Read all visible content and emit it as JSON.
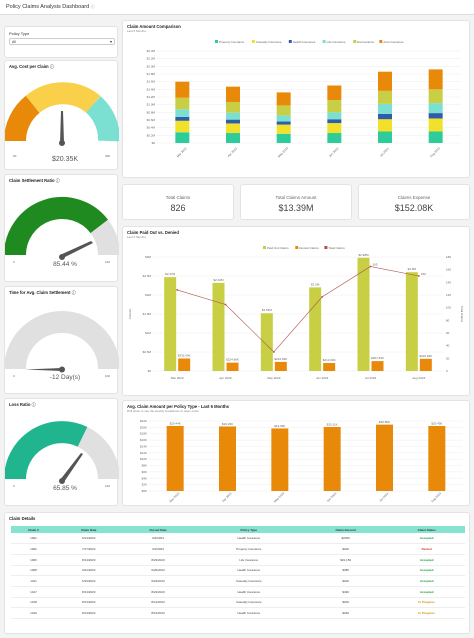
{
  "page_title": "Policy Claims Analysis Dashboard",
  "filter": {
    "label": "Policy Type",
    "value": "All"
  },
  "gauges": {
    "avg_cost": {
      "title": "Avg. Cost per Claim",
      "value": "$20.35K",
      "min": "0K",
      "max": "40K",
      "fraction": 0.51
    },
    "settlement_ratio": {
      "title": "Claim Settlement Ratio",
      "value": "85.44 %",
      "min": "0",
      "max": "100",
      "fraction": 0.85
    },
    "time_settlement": {
      "title": "Time for Avg. Claim Settlement",
      "value": "-12 Day(s)",
      "min": "0",
      "max": "100",
      "fraction": 0
    },
    "loss_ratio": {
      "title": "Loss Ratio",
      "value": "65.85 %",
      "min": "0",
      "max": "100",
      "fraction": 0.66
    }
  },
  "kpis": [
    {
      "label": "Total Claims",
      "value": "826"
    },
    {
      "label": "Total Claims Amount",
      "value": "$13.39M"
    },
    {
      "label": "Claims Expense",
      "value": "$152.08K"
    }
  ],
  "chart_data": [
    {
      "type": "bar",
      "stacked": true,
      "title": "Claim Amount Comparison",
      "subtitle": "Last 6 Months",
      "categories": [
        "Mar 2023",
        "Apr 2023",
        "May 2023",
        "Jun 2023",
        "Jul 2023",
        "Aug 2023"
      ],
      "y_ticks": [
        "$0",
        "$0.2M",
        "$0.4M",
        "$0.6M",
        "$0.8M",
        "$1.0M",
        "$1.2M",
        "$1.4M",
        "$1.6M",
        "$1.8M",
        "$2.0M",
        "$2.2M",
        "$2.4M"
      ],
      "ylim": [
        0,
        2.4
      ],
      "legend_position": "top",
      "series": [
        {
          "name": "Property Insurance",
          "color": "#2ecc9a",
          "values": [
            0.28,
            0.26,
            0.24,
            0.26,
            0.3,
            0.3
          ]
        },
        {
          "name": "Casualty Insurance",
          "color": "#f2e12b",
          "values": [
            0.3,
            0.25,
            0.24,
            0.26,
            0.32,
            0.34
          ]
        },
        {
          "name": "Health Insurance",
          "color": "#2e5eaa",
          "values": [
            0.1,
            0.1,
            0.08,
            0.1,
            0.14,
            0.14
          ]
        },
        {
          "name": "Life Insurance",
          "color": "#7be0d2",
          "values": [
            0.2,
            0.18,
            0.16,
            0.18,
            0.26,
            0.26
          ]
        },
        {
          "name": "Reinsurance",
          "color": "#c9cf45",
          "values": [
            0.3,
            0.28,
            0.26,
            0.32,
            0.34,
            0.36
          ]
        },
        {
          "name": "Auto Insurance",
          "color": "#e8890a",
          "values": [
            0.42,
            0.4,
            0.34,
            0.38,
            0.5,
            0.52
          ]
        }
      ]
    },
    {
      "type": "bar",
      "title": "Claim Paid Out vs. Denied",
      "subtitle": "Last 6 Months",
      "categories": [
        "Mar 2023",
        "Apr 2023",
        "May 2023",
        "Jun 2023",
        "Jul 2023",
        "Aug 2023"
      ],
      "ylabel": "Amount",
      "y2label": "Total Claims",
      "y_ticks": [
        "$0",
        "$0.5M",
        "$1M",
        "$1.5M",
        "$2M",
        "$2.5M",
        "$3M"
      ],
      "y2_ticks": [
        "0",
        "20",
        "40",
        "60",
        "80",
        "100",
        "120",
        "140",
        "160",
        "180"
      ],
      "ylim": [
        0,
        3
      ],
      "y2lim": [
        0,
        180
      ],
      "legend_position": "top",
      "series": [
        {
          "name": "Paid Out Claims",
          "color": "#c9cf45",
          "values": [
            2.47,
            2.32,
            1.52,
            2.2,
            2.98,
            2.6
          ],
          "labels": [
            "$2.47M",
            "$2.32M",
            "$1.52M",
            "$2.2M",
            "$2.98M",
            "$2.6M"
          ]
        },
        {
          "name": "Denied Claims",
          "color": "#e8890a",
          "values": [
            0.33,
            0.22,
            0.24,
            0.21,
            0.26,
            0.32
          ],
          "labels": [
            "$332.60K",
            "$224.66K",
            "$244.06K",
            "$213.60K",
            "$257.84K",
            "$322.84K"
          ]
        },
        {
          "name": "Total Claims",
          "color": "#b05050",
          "type": "line",
          "axis": "right",
          "values": [
            128,
            105,
            30,
            117,
            165,
            150
          ],
          "labels": [
            "",
            "",
            "",
            "",
            "165",
            "150"
          ]
        }
      ]
    },
    {
      "type": "bar",
      "title": "Avg. Claim Amount per Policy Type - Last 6 Months",
      "subtitle": "Drill down to see the weekly breakdown of claim costs",
      "categories": [
        "Mar 2023",
        "Apr 2023",
        "May 2023",
        "Jun 2023",
        "Jul 2023",
        "Aug 2023"
      ],
      "y_ticks": [
        "$0K",
        "$2K",
        "$4K",
        "$6K",
        "$8K",
        "$10K",
        "$12K",
        "$14K",
        "$16K",
        "$18K",
        "$20K",
        "$22K"
      ],
      "ylim": [
        0,
        22
      ],
      "series": [
        {
          "name": "Avg. Claim Amount",
          "color": "#e8890a",
          "values": [
            20.44,
            20.29,
            19.66,
            20.11,
            20.86,
            20.43
          ],
          "labels": [
            "$20.44K",
            "$20.29K",
            "$19.66K",
            "$20.11K",
            "$20.86K",
            "$20.43K"
          ]
        }
      ]
    }
  ],
  "table": {
    "title": "Claim Details",
    "columns": [
      "Claim #",
      "Claim Date",
      "Closed Date",
      "Policy Type",
      "Claim Amount",
      "Claim Status"
    ],
    "rows": [
      [
        "1001",
        "6/13/2023",
        "9/4/2023",
        "Health Insurance",
        "$2006",
        "Accepted"
      ],
      [
        "1002",
        "7/17/2023",
        "9/2/2023",
        "Property Insurance",
        "$200",
        "Denied"
      ],
      [
        "1006",
        "8/14/2023",
        "8/23/2023",
        "Life Insurance",
        "$31,150",
        "Accepted"
      ],
      [
        "1008",
        "6/22/2023",
        "6/26/2023",
        "Health Insurance",
        "$380",
        "Accepted"
      ],
      [
        "1011",
        "6/16/2023",
        "6/24/2023",
        "Casualty Insurance",
        "$200",
        "Accepted"
      ],
      [
        "1017",
        "8/13/2023",
        "8/24/2023",
        "Health Insurance",
        "$490",
        "Accepted"
      ],
      [
        "1018",
        "8/13/2023",
        "8/13/2023",
        "Casualty Insurance",
        "$200",
        "In Progress"
      ],
      [
        "1019",
        "8/13/2023",
        "8/13/2023",
        "Health Insurance",
        "$290",
        "In Progress"
      ]
    ],
    "status_colors": {
      "Accepted": "#1a9a3a",
      "Denied": "#d0342c",
      "In Progress": "#d08a00"
    }
  }
}
